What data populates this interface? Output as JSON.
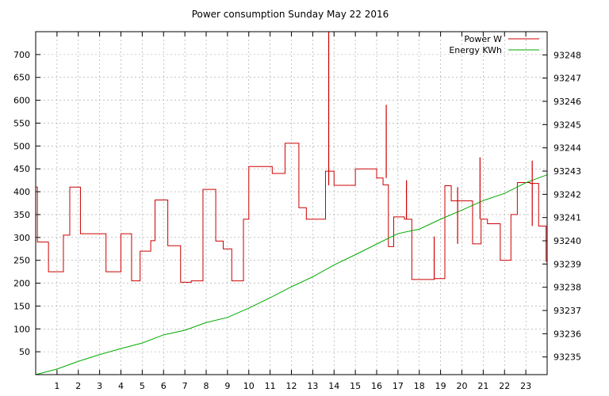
{
  "chart_data": {
    "type": "line",
    "title": "Power consumption Sunday May 22 2016",
    "xlabel": "",
    "ylabel": "",
    "xlim": [
      0,
      24
    ],
    "ylim": [
      0,
      750
    ],
    "y2lim": [
      93234.24,
      93249.0
    ],
    "grid": true,
    "legend": "top-right",
    "x_ticks": [
      1,
      2,
      3,
      4,
      5,
      6,
      7,
      8,
      9,
      10,
      11,
      12,
      13,
      14,
      15,
      16,
      17,
      18,
      19,
      20,
      21,
      22,
      23
    ],
    "y_ticks": [
      50,
      100,
      150,
      200,
      250,
      300,
      350,
      400,
      450,
      500,
      550,
      600,
      650,
      700
    ],
    "y2_ticks": [
      93235,
      93236,
      93237,
      93238,
      93239,
      93240,
      93241,
      93242,
      93243,
      93244,
      93245,
      93246,
      93247,
      93248
    ],
    "series": [
      {
        "name": "Power W",
        "color": "#cc0000",
        "axis": "y1",
        "step": true,
        "x": [
          0,
          0.08,
          0.6,
          1.3,
          1.6,
          2.1,
          2.9,
          3.3,
          4.0,
          4.5,
          4.9,
          5.4,
          5.6,
          6.2,
          6.8,
          7.3,
          7.85,
          8.45,
          8.8,
          9.2,
          9.75,
          10.0,
          11.1,
          11.7,
          12.35,
          12.7,
          13.6,
          14.0,
          15.0,
          16.0,
          16.3,
          16.55,
          16.8,
          17.3,
          17.65,
          18.7,
          19.2,
          19.5,
          20.5,
          20.9,
          21.2,
          21.8,
          22.3,
          22.6,
          23.2,
          23.6,
          23.95
        ],
        "values": [
          410,
          290,
          225,
          305,
          410,
          308,
          308,
          225,
          308,
          205,
          270,
          293,
          382,
          282,
          202,
          205,
          405,
          292,
          275,
          205,
          340,
          455,
          440,
          506,
          365,
          340,
          445,
          414,
          450,
          430,
          415,
          280,
          345,
          340,
          208,
          210,
          413,
          380,
          286,
          340,
          330,
          250,
          350,
          420,
          418,
          325,
          248
        ]
      },
      {
        "name": "Energy KWh",
        "color": "#00aa00",
        "axis": "y2",
        "step": false,
        "x": [
          0,
          1,
          2,
          3,
          4,
          5,
          6,
          7,
          8,
          9,
          10,
          11,
          12,
          13,
          14,
          15,
          16,
          17,
          18,
          19,
          20,
          21,
          22,
          23,
          24
        ],
        "values": [
          93234.24,
          93234.48,
          93234.81,
          93235.1,
          93235.36,
          93235.6,
          93235.95,
          93236.15,
          93236.48,
          93236.7,
          93237.1,
          93237.55,
          93238.02,
          93238.45,
          93238.96,
          93239.4,
          93239.86,
          93240.31,
          93240.5,
          93240.93,
          93241.32,
          93241.73,
          93242.04,
          93242.5,
          93242.84
        ]
      }
    ],
    "spikes": [
      {
        "x": 13.75,
        "y": 750,
        "base": 414
      },
      {
        "x": 16.45,
        "y": 590,
        "base": 430
      },
      {
        "x": 17.4,
        "y": 425,
        "base": 340
      },
      {
        "x": 18.7,
        "y": 302,
        "base": 210
      },
      {
        "x": 19.8,
        "y": 410,
        "base": 286
      },
      {
        "x": 20.85,
        "y": 475,
        "base": 340
      },
      {
        "x": 23.3,
        "y": 468,
        "base": 325
      }
    ]
  }
}
